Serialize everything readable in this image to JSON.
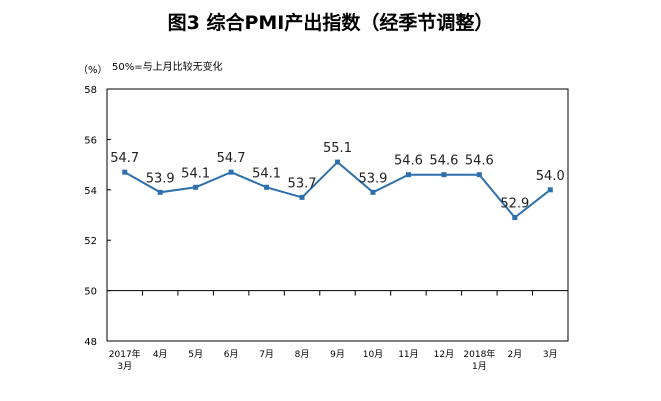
{
  "chart_data": {
    "type": "line",
    "title": "图3  综合PMI产出指数（经季节调整）",
    "y_unit": "（%）",
    "note": "50%=与上月比较无变化",
    "ylim": [
      48,
      58
    ],
    "y_ticks": [
      "48",
      "50",
      "52",
      "54",
      "56",
      "58"
    ],
    "reference_line": 50,
    "categories": [
      [
        "2017年",
        "3月"
      ],
      [
        "4月"
      ],
      [
        "5月"
      ],
      [
        "6月"
      ],
      [
        "7月"
      ],
      [
        "8月"
      ],
      [
        "9月"
      ],
      [
        "10月"
      ],
      [
        "11月"
      ],
      [
        "12月"
      ],
      [
        "2018年",
        "1月"
      ],
      [
        "2月"
      ],
      [
        "3月"
      ]
    ],
    "values": [
      54.7,
      53.9,
      54.1,
      54.7,
      54.1,
      53.7,
      55.1,
      53.9,
      54.6,
      54.6,
      54.6,
      52.9,
      54.0
    ],
    "data_labels": [
      "54.7",
      "53.9",
      "54.1",
      "54.7",
      "54.1",
      "53.7",
      "55.1",
      "53.9",
      "54.6",
      "54.6",
      "54.6",
      "52.9",
      "54.0"
    ],
    "line_color": "#2e6fad",
    "grid": false
  }
}
